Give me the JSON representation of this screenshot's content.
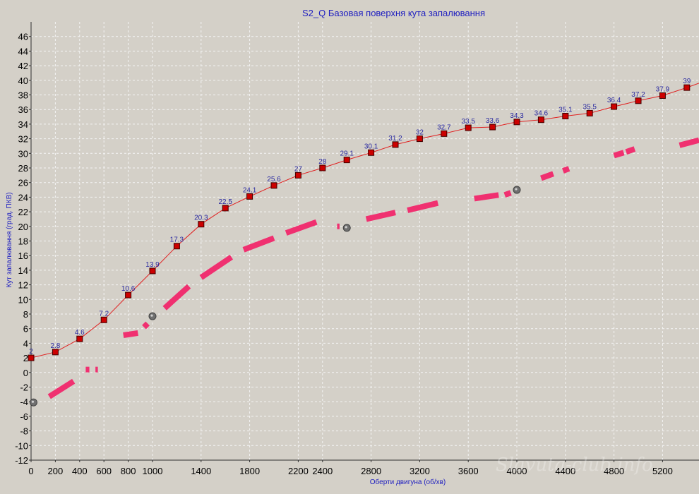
{
  "chart_data": {
    "type": "line",
    "title": "S2_Q Базовая поверхня кута запалювання",
    "xlabel": "Оберти двигуна (об/хв)",
    "ylabel": "Кут запалювання (град. ПКВ)",
    "xlim": [
      0,
      5500
    ],
    "ylim": [
      -12,
      48
    ],
    "x_ticks": [
      0,
      200,
      400,
      600,
      800,
      1000,
      1400,
      1800,
      2200,
      2400,
      2800,
      3200,
      3600,
      4000,
      4400,
      4800,
      5200
    ],
    "x_tick_labels": [
      "0",
      "200",
      "400",
      "600",
      "800",
      "1000",
      "1400",
      "1800",
      "2200",
      "2400",
      "2800",
      "3200",
      "3600",
      "4000",
      "4400",
      "4800",
      "5200"
    ],
    "y_ticks": [
      -12,
      -10,
      -8,
      -6,
      -4,
      -2,
      0,
      2,
      4,
      6,
      8,
      10,
      12,
      14,
      16,
      18,
      20,
      22,
      24,
      26,
      28,
      30,
      32,
      34,
      36,
      38,
      40,
      42,
      44,
      46
    ],
    "y_tick_labels": [
      "-12",
      "-10",
      "-8",
      "-6",
      "-4",
      "-2",
      "0",
      "2",
      "4",
      "6",
      "8",
      "10",
      "12",
      "14",
      "16",
      "18",
      "20",
      "22",
      "24",
      "26",
      "28",
      "30",
      "32",
      "34",
      "36",
      "38",
      "40",
      "42",
      "44",
      "46"
    ],
    "grid": true,
    "series": [
      {
        "color": "#e02020",
        "marker_color": "#cc0000",
        "label_color": "#2a2aa0",
        "x": [
          0,
          200,
          400,
          600,
          800,
          1000,
          1200,
          1400,
          1600,
          1800,
          2000,
          2200,
          2400,
          2600,
          2800,
          3000,
          3200,
          3400,
          3600,
          3800,
          4000,
          4200,
          4400,
          4600,
          4800,
          5000,
          5200,
          5400
        ],
        "values": [
          2,
          2.8,
          4.6,
          7.2,
          10.6,
          13.9,
          17.3,
          20.3,
          22.5,
          24.1,
          25.6,
          27,
          28,
          29.1,
          30.1,
          31.2,
          32,
          32.7,
          33.5,
          33.6,
          34.3,
          34.6,
          35.1,
          35.5,
          36.4,
          37.2,
          37.9,
          39
        ],
        "data_labels": [
          "2",
          "2.8",
          "4.6",
          "7.2",
          "10.6",
          "13.9",
          "17.3",
          "20.3",
          "22.5",
          "24.1",
          "25.6",
          "27",
          "28",
          "29.1",
          "30.1",
          "31.2",
          "32",
          "32.7",
          "33.5",
          "33.6",
          "34.3",
          "34.6",
          "35.1",
          "35.5",
          "36.4",
          "37.2",
          "37.9",
          "39"
        ],
        "extends_to": {
          "x": 5500,
          "y": 39.6
        }
      },
      {
        "style": "dashed-hand-drawn",
        "color": "#f03070",
        "segments": [
          [
            [
              150,
              -3.3
            ],
            [
              350,
              -1.2
            ]
          ],
          [
            [
              450,
              0.4
            ],
            [
              480,
              0.4
            ]
          ],
          [
            [
              530,
              0.4
            ],
            [
              550,
              0.4
            ]
          ],
          [
            [
              760,
              5.1
            ],
            [
              880,
              5.4
            ]
          ],
          [
            [
              930,
              6.2
            ],
            [
              960,
              6.7
            ]
          ],
          [
            [
              1100,
              8.8
            ],
            [
              1300,
              11.8
            ]
          ],
          [
            [
              1400,
              13.0
            ],
            [
              1650,
              15.8
            ]
          ],
          [
            [
              1750,
              16.8
            ],
            [
              2000,
              18.4
            ]
          ],
          [
            [
              2100,
              19.1
            ],
            [
              2350,
              20.6
            ]
          ],
          [
            [
              2520,
              20.0
            ],
            [
              2540,
              20.0
            ]
          ],
          [
            [
              2760,
              21.0
            ],
            [
              3000,
              21.9
            ]
          ],
          [
            [
              3100,
              22.2
            ],
            [
              3350,
              23.2
            ]
          ],
          [
            [
              3650,
              23.8
            ],
            [
              3850,
              24.3
            ]
          ],
          [
            [
              3900,
              24.3
            ],
            [
              3950,
              24.6
            ]
          ],
          [
            [
              4200,
              26.6
            ],
            [
              4300,
              27.2
            ]
          ],
          [
            [
              4380,
              27.6
            ],
            [
              4430,
              27.9
            ]
          ],
          [
            [
              4800,
              29.7
            ],
            [
              4880,
              30.1
            ]
          ],
          [
            [
              4900,
              30.2
            ],
            [
              4970,
              30.6
            ]
          ],
          [
            [
              5340,
              31.1
            ],
            [
              5500,
              31.8
            ]
          ]
        ],
        "markers": [
          {
            "x": 20,
            "y": -4.1
          },
          {
            "x": 1000,
            "y": 7.7
          },
          {
            "x": 2600,
            "y": 19.8
          },
          {
            "x": 4000,
            "y": 25
          }
        ]
      }
    ]
  },
  "watermark": "Slavuta-club.info"
}
